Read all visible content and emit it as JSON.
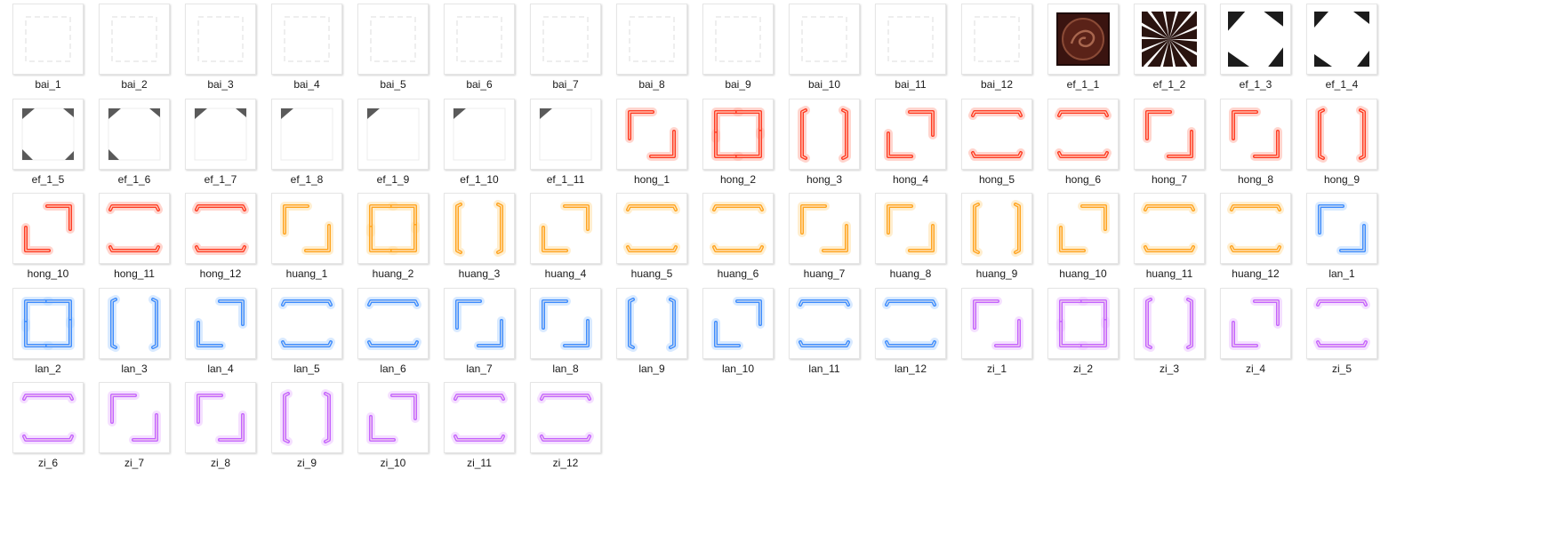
{
  "colors": {
    "hong": "#ff3a22",
    "hong_glow": "#ffb3a6",
    "huang": "#ffa41f",
    "huang_glow": "#ffe0a8",
    "lan": "#3c8cff",
    "lan_glow": "#b9d8ff",
    "zi": "#c463ff",
    "zi_glow": "#ecc6ff",
    "bai": "#d8d8d8"
  },
  "files": [
    {
      "name": "bai_1",
      "kind": "bai"
    },
    {
      "name": "bai_2",
      "kind": "bai"
    },
    {
      "name": "bai_3",
      "kind": "bai"
    },
    {
      "name": "bai_4",
      "kind": "bai"
    },
    {
      "name": "bai_5",
      "kind": "bai"
    },
    {
      "name": "bai_6",
      "kind": "bai"
    },
    {
      "name": "bai_7",
      "kind": "bai"
    },
    {
      "name": "bai_8",
      "kind": "bai"
    },
    {
      "name": "bai_9",
      "kind": "bai"
    },
    {
      "name": "bai_10",
      "kind": "bai"
    },
    {
      "name": "bai_11",
      "kind": "bai"
    },
    {
      "name": "bai_12",
      "kind": "bai"
    },
    {
      "name": "ef_1_1",
      "kind": "ef_seal"
    },
    {
      "name": "ef_1_2",
      "kind": "ef_burst"
    },
    {
      "name": "ef_1_3",
      "kind": "ef_corners"
    },
    {
      "name": "ef_1_4",
      "kind": "ef_corners"
    },
    {
      "name": "ef_1_5",
      "kind": "ef_fragment"
    },
    {
      "name": "ef_1_6",
      "kind": "ef_fragment"
    },
    {
      "name": "ef_1_7",
      "kind": "ef_fragment"
    },
    {
      "name": "ef_1_8",
      "kind": "ef_fragment"
    },
    {
      "name": "ef_1_9",
      "kind": "ef_fragment"
    },
    {
      "name": "ef_1_10",
      "kind": "ef_fragment"
    },
    {
      "name": "ef_1_11",
      "kind": "ef_fragment"
    },
    {
      "name": "hong_1",
      "kind": "hong"
    },
    {
      "name": "hong_2",
      "kind": "hong"
    },
    {
      "name": "hong_3",
      "kind": "hong"
    },
    {
      "name": "hong_4",
      "kind": "hong"
    },
    {
      "name": "hong_5",
      "kind": "hong"
    },
    {
      "name": "hong_6",
      "kind": "hong"
    },
    {
      "name": "hong_7",
      "kind": "hong"
    },
    {
      "name": "hong_8",
      "kind": "hong"
    },
    {
      "name": "hong_9",
      "kind": "hong"
    },
    {
      "name": "hong_10",
      "kind": "hong"
    },
    {
      "name": "hong_11",
      "kind": "hong"
    },
    {
      "name": "hong_12",
      "kind": "hong"
    },
    {
      "name": "huang_1",
      "kind": "huang"
    },
    {
      "name": "huang_2",
      "kind": "huang"
    },
    {
      "name": "huang_3",
      "kind": "huang"
    },
    {
      "name": "huang_4",
      "kind": "huang"
    },
    {
      "name": "huang_5",
      "kind": "huang"
    },
    {
      "name": "huang_6",
      "kind": "huang"
    },
    {
      "name": "huang_7",
      "kind": "huang"
    },
    {
      "name": "huang_8",
      "kind": "huang"
    },
    {
      "name": "huang_9",
      "kind": "huang"
    },
    {
      "name": "huang_10",
      "kind": "huang"
    },
    {
      "name": "huang_11",
      "kind": "huang"
    },
    {
      "name": "huang_12",
      "kind": "huang"
    },
    {
      "name": "lan_1",
      "kind": "lan"
    },
    {
      "name": "lan_2",
      "kind": "lan"
    },
    {
      "name": "lan_3",
      "kind": "lan"
    },
    {
      "name": "lan_4",
      "kind": "lan"
    },
    {
      "name": "lan_5",
      "kind": "lan"
    },
    {
      "name": "lan_6",
      "kind": "lan"
    },
    {
      "name": "lan_7",
      "kind": "lan"
    },
    {
      "name": "lan_8",
      "kind": "lan"
    },
    {
      "name": "lan_9",
      "kind": "lan"
    },
    {
      "name": "lan_10",
      "kind": "lan"
    },
    {
      "name": "lan_11",
      "kind": "lan"
    },
    {
      "name": "lan_12",
      "kind": "lan"
    },
    {
      "name": "zi_1",
      "kind": "zi"
    },
    {
      "name": "zi_2",
      "kind": "zi"
    },
    {
      "name": "zi_3",
      "kind": "zi"
    },
    {
      "name": "zi_4",
      "kind": "zi"
    },
    {
      "name": "zi_5",
      "kind": "zi"
    },
    {
      "name": "zi_6",
      "kind": "zi"
    },
    {
      "name": "zi_7",
      "kind": "zi"
    },
    {
      "name": "zi_8",
      "kind": "zi"
    },
    {
      "name": "zi_9",
      "kind": "zi"
    },
    {
      "name": "zi_10",
      "kind": "zi"
    },
    {
      "name": "zi_11",
      "kind": "zi"
    },
    {
      "name": "zi_12",
      "kind": "zi"
    }
  ]
}
